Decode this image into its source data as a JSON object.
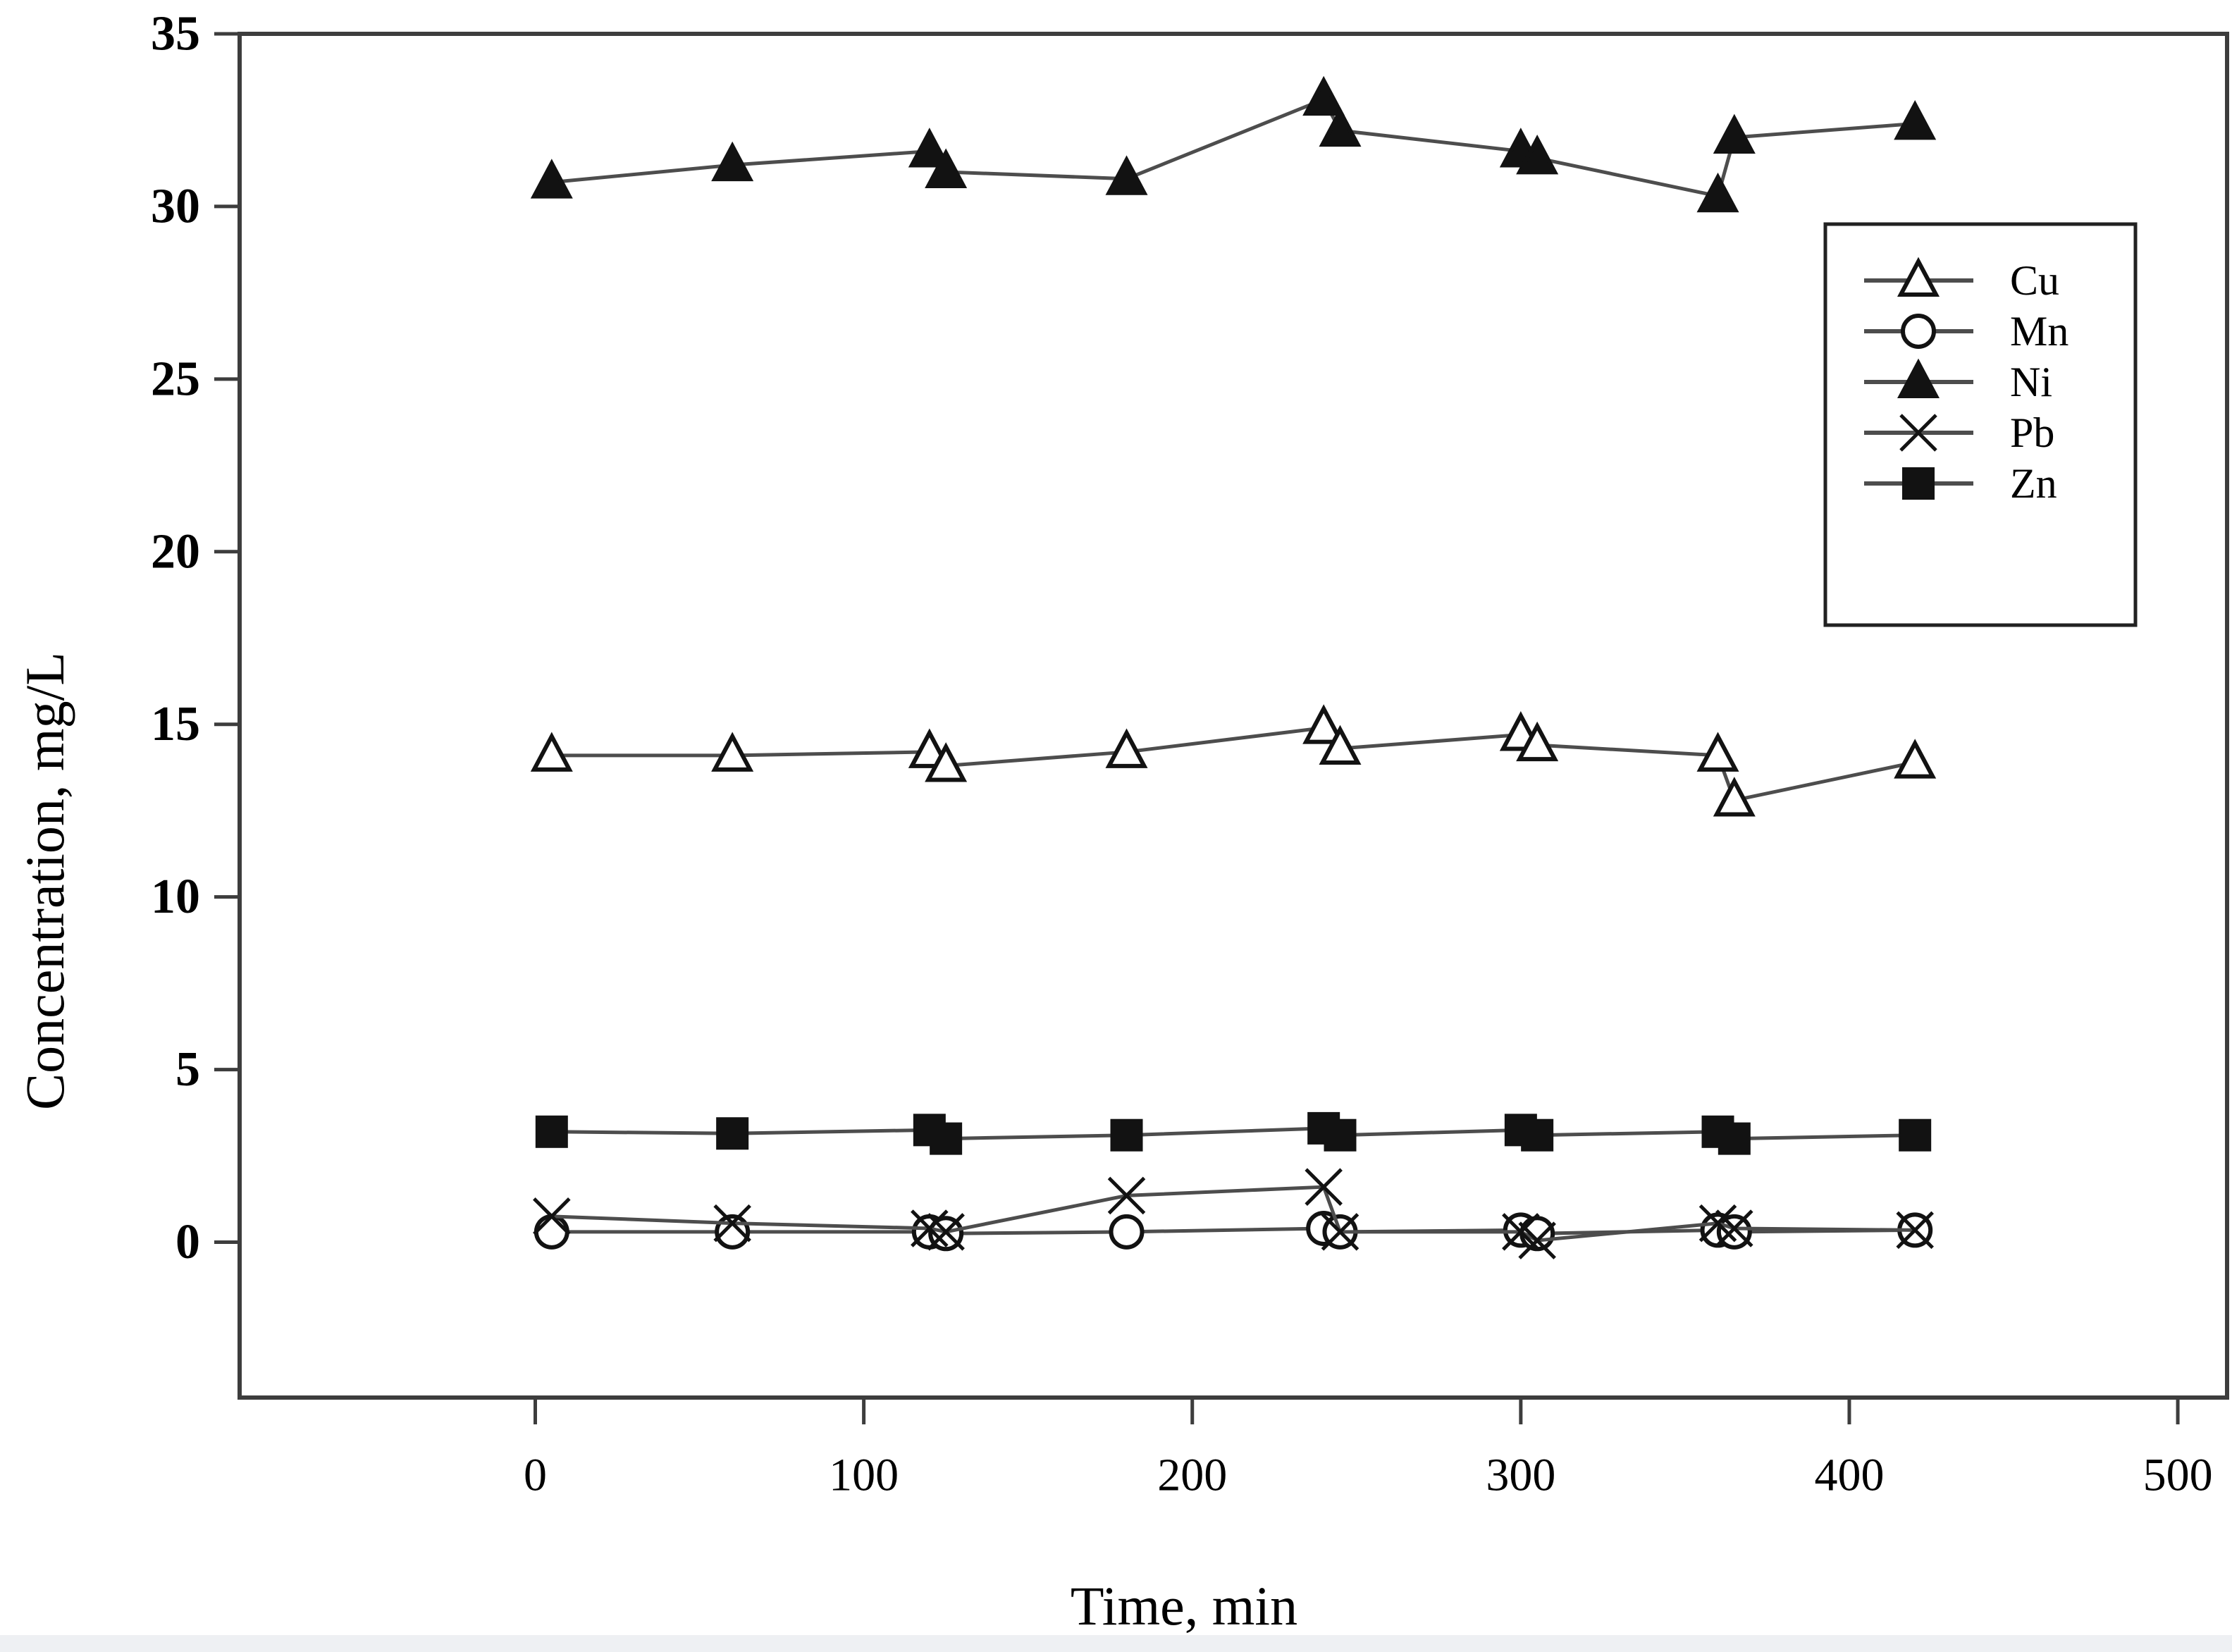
{
  "figure": {
    "background": "#ffffff",
    "frame_color": "#3d3d3d",
    "tick_color": "#3d3d3d",
    "text_color": "#000000",
    "line_color": "#4d4d4d",
    "marker_color": "#121212",
    "marker_fill_open": "#ffffff",
    "bottom_strip_color": "#eef0f3"
  },
  "chart_data": {
    "type": "line",
    "title": "",
    "xlabel": "Time, min",
    "ylabel": "Concentration, mg/L",
    "xlim": [
      -90,
      515
    ],
    "ylim": [
      -4.5,
      35
    ],
    "xticks": [
      0,
      100,
      200,
      300,
      400,
      500
    ],
    "yticks": [
      0,
      5,
      10,
      15,
      20,
      25,
      30,
      35
    ],
    "grid": false,
    "legend_position": "upper right",
    "legend_entries": [
      "Cu",
      "Mn",
      "Ni",
      "Pb",
      "Zn"
    ],
    "x": [
      5,
      60,
      120,
      125,
      180,
      240,
      245,
      300,
      305,
      360,
      365,
      420
    ],
    "series": [
      {
        "name": "Cu",
        "marker": "triangle-open",
        "values": [
          14.1,
          14.1,
          14.2,
          13.8,
          14.2,
          14.9,
          14.3,
          14.7,
          14.4,
          14.1,
          12.8,
          13.9
        ]
      },
      {
        "name": "Mn",
        "marker": "circle-open",
        "values": [
          0.3,
          0.3,
          0.3,
          0.25,
          0.3,
          0.4,
          0.3,
          0.35,
          0.25,
          0.35,
          0.3,
          0.35
        ]
      },
      {
        "name": "Ni",
        "marker": "triangle-filled",
        "values": [
          30.7,
          31.2,
          31.6,
          31.0,
          30.8,
          33.1,
          32.2,
          31.6,
          31.4,
          30.3,
          32.0,
          32.4
        ]
      },
      {
        "name": "Pb",
        "marker": "x",
        "values": [
          0.75,
          0.55,
          0.4,
          0.3,
          1.35,
          1.6,
          0.3,
          0.3,
          0.05,
          0.55,
          0.4,
          0.35
        ]
      },
      {
        "name": "Zn",
        "marker": "square-filled",
        "values": [
          3.2,
          3.15,
          3.25,
          3.0,
          3.1,
          3.3,
          3.1,
          3.25,
          3.1,
          3.2,
          3.0,
          3.1
        ]
      }
    ]
  }
}
